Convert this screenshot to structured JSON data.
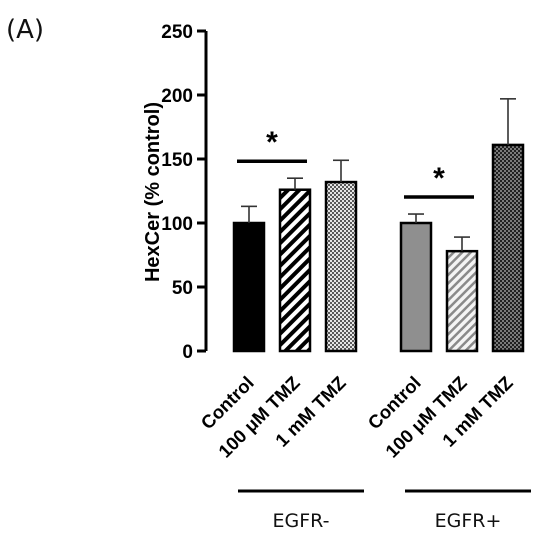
{
  "panel_label": "(A)",
  "chart_data": {
    "type": "bar",
    "ylabel": "HexCer (% control)",
    "ylim": [
      0,
      250
    ],
    "yticks": [
      0,
      50,
      100,
      150,
      200,
      250
    ],
    "groups": [
      {
        "label": "EGFR-",
        "bars": [
          {
            "category": "Control",
            "value": 100,
            "error": 13,
            "fill": "solid-black"
          },
          {
            "category": "100 μM TMZ",
            "value": 126,
            "error": 9,
            "fill": "diagonal-black"
          },
          {
            "category": "1 mM TMZ",
            "value": 132,
            "error": 17,
            "fill": "crosshatch-light"
          }
        ],
        "significance": {
          "between": [
            "Control",
            "100 μM TMZ"
          ],
          "mark": "*"
        }
      },
      {
        "label": "EGFR+",
        "bars": [
          {
            "category": "Control",
            "value": 100,
            "error": 7,
            "fill": "solid-gray"
          },
          {
            "category": "100 μM TMZ",
            "value": 78,
            "error": 11,
            "fill": "diagonal-gray"
          },
          {
            "category": "1 mM TMZ",
            "value": 161,
            "error": 36,
            "fill": "crosshatch-dark"
          }
        ],
        "significance": {
          "between": [
            "Control",
            "100 μM TMZ"
          ],
          "mark": "*"
        }
      }
    ],
    "grid": false,
    "legend": "none"
  }
}
